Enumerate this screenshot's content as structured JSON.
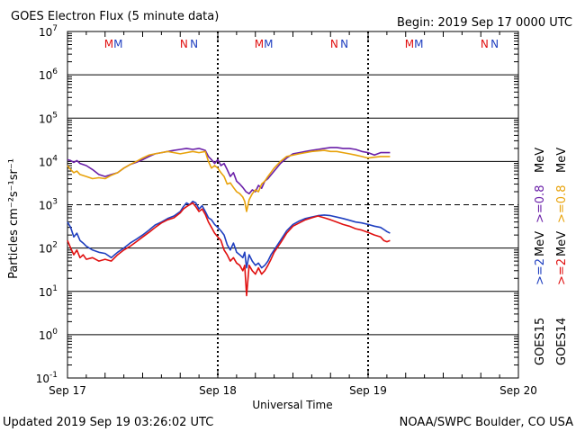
{
  "header": {
    "title": "GOES Electron Flux (5 minute data)",
    "begin": "Begin: 2019 Sep 17 0000 UTC"
  },
  "footer": {
    "updated": "Updated 2019 Sep 19 03:26:02 UTC",
    "credit": "NOAA/SWPC Boulder, CO USA"
  },
  "legend": {
    "goes15": "GOES15",
    "goes14": "GOES14",
    "ge2": ">=2",
    "ge08": ">=0.8",
    "mev": "MeV"
  },
  "colors": {
    "goes15_ge2": "#1f3fc0",
    "goes14_ge2": "#e01010",
    "goes15_ge08": "#6a1fa8",
    "goes14_ge08": "#e8a20a",
    "marker_m_red": "#e01010",
    "marker_m_blue": "#1f3fc0"
  },
  "chart_data": {
    "type": "line",
    "y_scale": "log",
    "ylabel": "Particles cm⁻²s⁻¹sr⁻¹",
    "xlabel": "Universal Time",
    "ylim": [
      0.1,
      10000000
    ],
    "xlim": [
      0,
      72
    ],
    "x_unit": "hours since 2019 Sep 17 00:00 UTC",
    "x_tick_labels": [
      "Sep 17",
      "Sep 18",
      "Sep 19",
      "Sep 20"
    ],
    "x_tick_positions": [
      0,
      24,
      48,
      72
    ],
    "y_tick_labels": [
      {
        "base": "10",
        "exp": "7",
        "value": 10000000
      },
      {
        "base": "10",
        "exp": "6",
        "value": 1000000
      },
      {
        "base": "10",
        "exp": "5",
        "value": 100000
      },
      {
        "base": "10",
        "exp": "4",
        "value": 10000
      },
      {
        "base": "10",
        "exp": "3",
        "value": 1000
      },
      {
        "base": "10",
        "exp": "2",
        "value": 100
      },
      {
        "base": "10",
        "exp": "1",
        "value": 10
      },
      {
        "base": "10",
        "exp": "0",
        "value": 1
      },
      {
        "base": "10",
        "exp": "-1",
        "value": 0.1
      }
    ],
    "threshold_line": {
      "value": 1000,
      "style": "dashed"
    },
    "markers": [
      {
        "label": "M",
        "x": 6.6,
        "color": "#e01010"
      },
      {
        "label": "M",
        "x": 8.1,
        "color": "#1f3fc0"
      },
      {
        "label": "N",
        "x": 18.6,
        "color": "#e01010"
      },
      {
        "label": "N",
        "x": 20.2,
        "color": "#1f3fc0"
      },
      {
        "label": "M",
        "x": 30.6,
        "color": "#e01010"
      },
      {
        "label": "M",
        "x": 32.1,
        "color": "#1f3fc0"
      },
      {
        "label": "N",
        "x": 42.6,
        "color": "#e01010"
      },
      {
        "label": "N",
        "x": 44.2,
        "color": "#1f3fc0"
      },
      {
        "label": "M",
        "x": 54.6,
        "color": "#e01010"
      },
      {
        "label": "M",
        "x": 56.1,
        "color": "#1f3fc0"
      },
      {
        "label": "N",
        "x": 66.6,
        "color": "#e01010"
      },
      {
        "label": "N",
        "x": 68.2,
        "color": "#1f3fc0"
      }
    ],
    "series": [
      {
        "name": "GOES15 >=0.8 MeV",
        "color": "#6a1fa8",
        "x": [
          0,
          0.5,
          1,
          1.5,
          2,
          3,
          4,
          5,
          6,
          7,
          8,
          9,
          10,
          11,
          12,
          13,
          14,
          15,
          16,
          17,
          18,
          19,
          20,
          21,
          22,
          22.5,
          23,
          23.5,
          24,
          24.5,
          25,
          25.5,
          26,
          26.5,
          27,
          27.5,
          28,
          28.5,
          29,
          29.5,
          30,
          30.5,
          31,
          31.5,
          32,
          33,
          34,
          35,
          36,
          37,
          38,
          39,
          40,
          41,
          42,
          43,
          44,
          45,
          46,
          47,
          48,
          49,
          50,
          51.5
        ],
        "y": [
          11000,
          10500,
          9500,
          10500,
          9000,
          8000,
          6500,
          5000,
          4500,
          5000,
          5500,
          7000,
          8500,
          9500,
          11000,
          13000,
          15000,
          16000,
          17000,
          18000,
          19000,
          20000,
          19000,
          20000,
          18000,
          13000,
          11000,
          9000,
          11000,
          8000,
          9000,
          6500,
          4500,
          5500,
          3500,
          3000,
          2500,
          2000,
          1800,
          2200,
          2000,
          2800,
          2400,
          3500,
          4000,
          6000,
          9000,
          12000,
          15000,
          16000,
          17000,
          18000,
          19000,
          20000,
          21000,
          21000,
          20000,
          20000,
          19000,
          17000,
          16000,
          14000,
          16000,
          16000
        ]
      },
      {
        "name": "GOES14 >=0.8 MeV",
        "color": "#e8a20a",
        "x": [
          0,
          0.5,
          1,
          1.5,
          2,
          3,
          4,
          5,
          6,
          7,
          8,
          9,
          10,
          11,
          12,
          13,
          14,
          15,
          16,
          17,
          18,
          19,
          20,
          21,
          22,
          22.5,
          23,
          23.5,
          24,
          24.5,
          25,
          25.5,
          26,
          26.5,
          27,
          27.5,
          28,
          28.3,
          28.6,
          29,
          29.5,
          30,
          30.5,
          31,
          31.5,
          32,
          33,
          34,
          35,
          36,
          37,
          38,
          39,
          40,
          41,
          42,
          43,
          44,
          45,
          46,
          47,
          48,
          49,
          50,
          51.5
        ],
        "y": [
          8000,
          6500,
          5500,
          6000,
          5000,
          4500,
          4000,
          4200,
          4000,
          4800,
          5500,
          7000,
          8500,
          10000,
          12000,
          14000,
          15000,
          16000,
          17000,
          16000,
          15000,
          16000,
          17000,
          16000,
          17000,
          10000,
          7000,
          8000,
          7000,
          5500,
          4500,
          3000,
          3200,
          2500,
          2000,
          1800,
          1500,
          1200,
          700,
          1300,
          1800,
          2200,
          2000,
          3000,
          3500,
          4500,
          7000,
          10000,
          13000,
          14000,
          15000,
          16000,
          17000,
          17500,
          18000,
          17000,
          17000,
          16000,
          15000,
          14000,
          13000,
          12000,
          12500,
          13000,
          13000
        ]
      },
      {
        "name": "GOES15 >=2 MeV",
        "color": "#1f3fc0",
        "x": [
          0,
          0.5,
          1,
          1.5,
          2,
          2.5,
          3,
          4,
          5,
          6,
          7,
          8,
          9,
          10,
          11,
          12,
          13,
          14,
          15,
          16,
          17,
          18,
          18.5,
          19,
          19.5,
          20,
          20.5,
          21,
          21.5,
          22,
          22.5,
          23,
          23.5,
          24,
          24.5,
          25,
          25.5,
          26,
          26.5,
          27,
          27.5,
          28,
          28.3,
          28.6,
          29,
          29.5,
          30,
          30.5,
          31,
          31.5,
          32,
          32.5,
          33,
          34,
          35,
          36,
          37,
          38,
          39,
          40,
          41,
          42,
          43,
          44,
          45,
          46,
          47,
          48,
          49,
          50,
          50.5,
          51,
          51.5
        ],
        "y": [
          400,
          300,
          180,
          220,
          150,
          130,
          110,
          90,
          80,
          75,
          60,
          80,
          100,
          130,
          160,
          200,
          260,
          340,
          400,
          480,
          550,
          700,
          900,
          1100,
          1000,
          1200,
          1100,
          800,
          950,
          700,
          500,
          450,
          350,
          300,
          250,
          200,
          120,
          90,
          130,
          80,
          70,
          60,
          80,
          35,
          70,
          50,
          40,
          45,
          35,
          40,
          50,
          70,
          90,
          150,
          250,
          350,
          420,
          480,
          520,
          560,
          580,
          560,
          520,
          480,
          440,
          400,
          380,
          350,
          320,
          300,
          270,
          240,
          220
        ]
      },
      {
        "name": "GOES14 >=2 MeV",
        "color": "#e01010",
        "x": [
          0,
          0.5,
          1,
          1.5,
          2,
          2.5,
          3,
          4,
          5,
          6,
          7,
          8,
          9,
          10,
          11,
          12,
          13,
          14,
          15,
          16,
          17,
          18,
          18.5,
          19,
          19.5,
          20,
          20.5,
          21,
          21.5,
          22,
          22.5,
          23,
          23.5,
          24,
          24.5,
          25,
          25.5,
          26,
          26.5,
          27,
          27.5,
          28,
          28.3,
          28.6,
          29,
          29.5,
          30,
          30.5,
          31,
          31.5,
          32,
          32.5,
          33,
          34,
          35,
          36,
          37,
          38,
          39,
          40,
          41,
          42,
          43,
          44,
          45,
          46,
          47,
          48,
          49,
          50,
          50.5,
          51,
          51.5
        ],
        "y": [
          150,
          100,
          70,
          90,
          60,
          70,
          55,
          60,
          50,
          55,
          50,
          70,
          90,
          110,
          140,
          180,
          230,
          300,
          380,
          450,
          500,
          650,
          800,
          900,
          1000,
          1100,
          900,
          700,
          800,
          600,
          400,
          300,
          220,
          180,
          150,
          90,
          70,
          50,
          60,
          45,
          40,
          30,
          40,
          8,
          40,
          30,
          25,
          35,
          25,
          30,
          40,
          55,
          80,
          130,
          220,
          320,
          380,
          450,
          500,
          550,
          500,
          450,
          400,
          350,
          320,
          280,
          260,
          230,
          200,
          180,
          150,
          140,
          150
        ]
      }
    ]
  }
}
